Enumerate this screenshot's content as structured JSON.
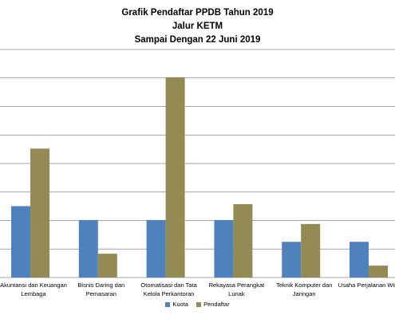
{
  "chart_data": {
    "type": "bar",
    "title_lines": [
      "Grafik Pendaftar PPDB Tahun 2019",
      "Jalur KETM",
      "Sampai Dengan 22 Juni 2019"
    ],
    "categories": [
      [
        "Akuntansi dan Keuangan",
        "Lembaga"
      ],
      [
        "Bisnis Daring dan",
        "Pemasaran"
      ],
      [
        "Otomatisasi dan Tata",
        "Kelola Perkantoran"
      ],
      [
        "Rekayasa Perangkat",
        "Lunak"
      ],
      [
        "Teknik Komputer dan",
        "Jaringan"
      ],
      [
        "Usaha Perjalanan Wisata",
        ""
      ]
    ],
    "series": [
      {
        "name": "Kuota",
        "color": "#4F81BD",
        "values": [
          36,
          29,
          29,
          29,
          18,
          18
        ]
      },
      {
        "name": "Pendaftar",
        "color": "#948A54",
        "values": [
          65,
          12,
          101,
          37,
          27,
          6
        ]
      }
    ],
    "ylim": [
      0,
      115
    ],
    "y_gridline_step": 14.375,
    "grid": true,
    "legend_position": "bottom",
    "gridline_color": "#878787"
  }
}
